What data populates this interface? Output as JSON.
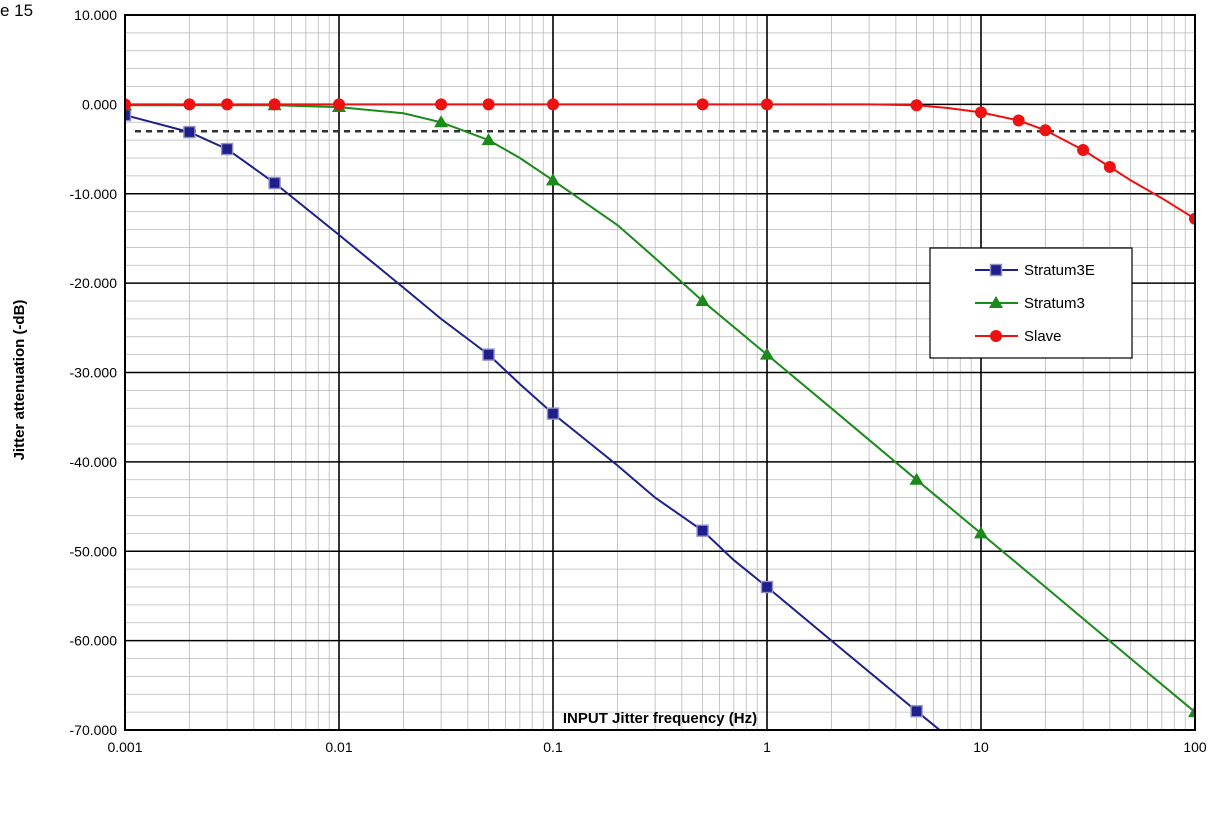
{
  "corner_label": "e 15",
  "chart_data": {
    "type": "line",
    "xlabel": "INPUT Jitter frequency (Hz)",
    "ylabel": "Jitter attenuation (-dB)",
    "xscale": "log",
    "xlim": [
      0.001,
      100
    ],
    "ylim": [
      -70,
      10
    ],
    "x_ticks": [
      0.001,
      0.01,
      0.1,
      1,
      10,
      100
    ],
    "x_tick_labels": [
      "0.001",
      "0.01",
      "0.1",
      "1",
      "10",
      "100"
    ],
    "y_ticks": [
      10,
      0,
      -10,
      -20,
      -30,
      -40,
      -50,
      -60,
      -70
    ],
    "y_tick_labels": [
      "10.000",
      "0.000",
      "-10.000",
      "-20.000",
      "-30.000",
      "-40.000",
      "-50.000",
      "-60.000",
      "-70.000"
    ],
    "grid": true,
    "legend_position": "right",
    "reference_line": {
      "y": -3,
      "style": "dashed"
    },
    "series": [
      {
        "name": "Stratum3E",
        "color": "#1f1f8c",
        "marker": "square",
        "x": [
          0.001,
          0.002,
          0.003,
          0.005,
          0.05,
          0.1,
          0.5,
          1,
          5
        ],
        "y": [
          -1.2,
          -3.1,
          -5.0,
          -8.8,
          -28.0,
          -34.6,
          -47.7,
          -54.0,
          -67.9
        ],
        "curve_x": [
          0.001,
          0.002,
          0.003,
          0.005,
          0.01,
          0.02,
          0.03,
          0.05,
          0.07,
          0.1,
          0.2,
          0.3,
          0.5,
          0.7,
          1,
          2,
          3,
          5,
          6.8
        ],
        "curve_y": [
          -1.2,
          -3.1,
          -5.0,
          -8.8,
          -14.6,
          -20.5,
          -24.0,
          -28.0,
          -31.3,
          -34.6,
          -40.4,
          -44.0,
          -47.7,
          -51.0,
          -54.0,
          -60.0,
          -63.5,
          -67.9,
          -70.5
        ]
      },
      {
        "name": "Stratum3",
        "color": "#1a8a1a",
        "marker": "triangle",
        "x": [
          0.001,
          0.005,
          0.01,
          0.03,
          0.05,
          0.1,
          0.5,
          1,
          5,
          10,
          100
        ],
        "y": [
          -0.1,
          -0.1,
          -0.3,
          -2.0,
          -4.0,
          -8.5,
          -22.0,
          -28.0,
          -42.0,
          -48.0,
          -68.0
        ],
        "curve_x": [
          0.001,
          0.005,
          0.01,
          0.02,
          0.03,
          0.05,
          0.07,
          0.1,
          0.2,
          0.3,
          0.5,
          1,
          2,
          5,
          10,
          20,
          50,
          100
        ],
        "curve_y": [
          -0.1,
          -0.1,
          -0.3,
          -1.0,
          -2.0,
          -4.0,
          -6.0,
          -8.5,
          -13.5,
          -17.2,
          -22.0,
          -28.0,
          -34.0,
          -42.0,
          -48.0,
          -54.0,
          -62.0,
          -68.0
        ]
      },
      {
        "name": "Slave",
        "color": "#ee1111",
        "marker": "circle",
        "x": [
          0.001,
          0.002,
          0.003,
          0.005,
          0.01,
          0.03,
          0.05,
          0.1,
          0.5,
          1,
          5,
          10,
          15,
          20,
          30,
          40,
          100
        ],
        "y": [
          0.0,
          0.0,
          0.0,
          0.0,
          0.0,
          0.0,
          0.0,
          0.0,
          0.0,
          0.0,
          -0.1,
          -0.9,
          -1.8,
          -2.9,
          -5.1,
          -7.0,
          -12.8
        ],
        "curve_x": [
          0.001,
          0.002,
          0.003,
          0.005,
          0.01,
          0.03,
          0.05,
          0.1,
          0.5,
          1,
          3,
          5,
          7,
          10,
          15,
          20,
          30,
          40,
          50,
          70,
          100
        ],
        "curve_y": [
          0.0,
          0.0,
          0.0,
          0.0,
          0.0,
          0.0,
          0.0,
          0.0,
          0.0,
          0.0,
          0.0,
          -0.1,
          -0.4,
          -0.9,
          -1.8,
          -2.9,
          -5.1,
          -7.0,
          -8.5,
          -10.5,
          -12.8
        ]
      }
    ]
  }
}
